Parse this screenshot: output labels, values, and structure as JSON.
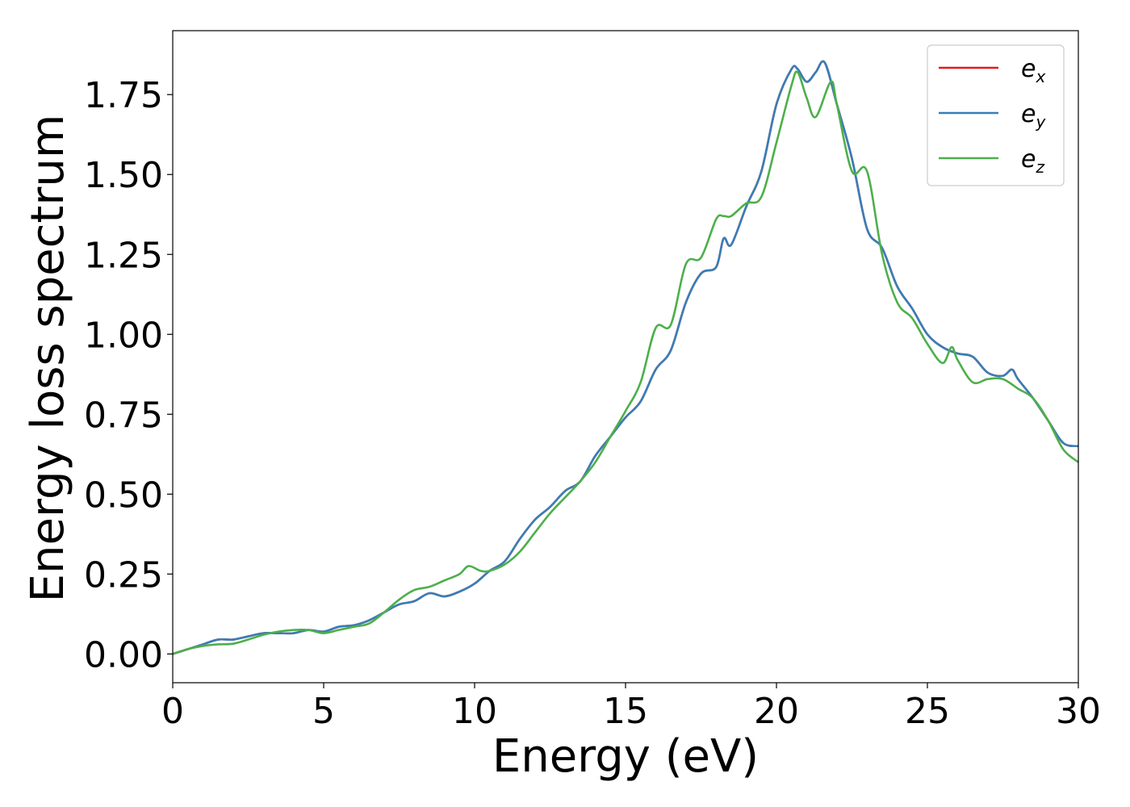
{
  "chart_data": {
    "type": "line",
    "xlabel": "Energy (eV)",
    "ylabel": "Energy loss spectrum",
    "xlim": [
      0,
      30
    ],
    "ylim": [
      -0.09,
      1.95
    ],
    "xticks": [
      0,
      5,
      10,
      15,
      20,
      25,
      30
    ],
    "xtick_labels": [
      "0",
      "5",
      "10",
      "15",
      "20",
      "25",
      "30"
    ],
    "yticks": [
      0.0,
      0.25,
      0.5,
      0.75,
      1.0,
      1.25,
      1.5,
      1.75
    ],
    "ytick_labels": [
      "0.00",
      "0.25",
      "0.50",
      "0.75",
      "1.00",
      "1.25",
      "1.50",
      "1.75"
    ],
    "grid": false,
    "legend_position": "top-right",
    "series": [
      {
        "name": "e_x",
        "label_main": "e",
        "label_sub": "x",
        "color": "#e41a1c",
        "x": [
          0,
          0.5,
          1,
          1.5,
          2,
          2.5,
          3,
          3.5,
          4,
          4.5,
          5,
          5.5,
          6,
          6.5,
          7,
          7.5,
          8,
          8.5,
          9,
          9.5,
          10,
          10.5,
          11,
          11.5,
          12,
          12.5,
          13,
          13.5,
          14,
          14.5,
          15,
          15.5,
          16,
          16.5,
          17,
          17.5,
          18,
          18.25,
          18.5,
          19,
          19.5,
          20,
          20.5,
          20.7,
          21,
          21.3,
          21.6,
          22,
          22.5,
          23,
          23.5,
          24,
          24.5,
          25,
          25.5,
          26,
          26.5,
          27,
          27.5,
          27.8,
          28,
          28.5,
          29,
          29.5,
          30
        ],
        "y": [
          0.0,
          0.015,
          0.03,
          0.045,
          0.045,
          0.055,
          0.065,
          0.065,
          0.065,
          0.075,
          0.07,
          0.085,
          0.09,
          0.105,
          0.13,
          0.155,
          0.165,
          0.19,
          0.18,
          0.195,
          0.22,
          0.26,
          0.29,
          0.36,
          0.42,
          0.46,
          0.51,
          0.54,
          0.62,
          0.68,
          0.74,
          0.79,
          0.89,
          0.95,
          1.1,
          1.19,
          1.21,
          1.3,
          1.28,
          1.4,
          1.51,
          1.72,
          1.83,
          1.83,
          1.79,
          1.82,
          1.85,
          1.72,
          1.55,
          1.33,
          1.27,
          1.15,
          1.08,
          1.0,
          0.96,
          0.94,
          0.93,
          0.88,
          0.87,
          0.89,
          0.86,
          0.8,
          0.73,
          0.66,
          0.65
        ]
      },
      {
        "name": "e_y",
        "label_main": "e",
        "label_sub": "y",
        "color": "#377eb8",
        "x": [
          0,
          0.5,
          1,
          1.5,
          2,
          2.5,
          3,
          3.5,
          4,
          4.5,
          5,
          5.5,
          6,
          6.5,
          7,
          7.5,
          8,
          8.5,
          9,
          9.5,
          10,
          10.5,
          11,
          11.5,
          12,
          12.5,
          13,
          13.5,
          14,
          14.5,
          15,
          15.5,
          16,
          16.5,
          17,
          17.5,
          18,
          18.25,
          18.5,
          19,
          19.5,
          20,
          20.5,
          20.7,
          21,
          21.3,
          21.6,
          22,
          22.5,
          23,
          23.5,
          24,
          24.5,
          25,
          25.5,
          26,
          26.5,
          27,
          27.5,
          27.8,
          28,
          28.5,
          29,
          29.5,
          30
        ],
        "y": [
          0.0,
          0.015,
          0.03,
          0.045,
          0.045,
          0.055,
          0.065,
          0.065,
          0.065,
          0.075,
          0.07,
          0.085,
          0.09,
          0.105,
          0.13,
          0.155,
          0.165,
          0.19,
          0.18,
          0.195,
          0.22,
          0.26,
          0.29,
          0.36,
          0.42,
          0.46,
          0.51,
          0.54,
          0.62,
          0.68,
          0.74,
          0.79,
          0.89,
          0.95,
          1.1,
          1.19,
          1.21,
          1.3,
          1.28,
          1.4,
          1.51,
          1.72,
          1.83,
          1.83,
          1.79,
          1.82,
          1.85,
          1.72,
          1.55,
          1.33,
          1.27,
          1.15,
          1.08,
          1.0,
          0.96,
          0.94,
          0.93,
          0.88,
          0.87,
          0.89,
          0.86,
          0.8,
          0.73,
          0.66,
          0.65
        ]
      },
      {
        "name": "e_z",
        "label_main": "e",
        "label_sub": "z",
        "color": "#4daf4a",
        "x": [
          0,
          0.5,
          1,
          1.5,
          2,
          2.5,
          3,
          3.5,
          4,
          4.5,
          5,
          5.5,
          6,
          6.5,
          7,
          7.5,
          8,
          8.5,
          9,
          9.5,
          9.8,
          10.2,
          10.5,
          11,
          11.5,
          12,
          12.5,
          13,
          13.5,
          14,
          14.5,
          15,
          15.5,
          16,
          16.5,
          17,
          17.5,
          18,
          18.25,
          18.5,
          19,
          19.5,
          20,
          20.5,
          20.7,
          21,
          21.3,
          21.8,
          22,
          22.5,
          23,
          23.5,
          24,
          24.5,
          25,
          25.5,
          25.8,
          26,
          26.5,
          27,
          27.5,
          28,
          28.5,
          29,
          29.5,
          30
        ],
        "y": [
          0.0,
          0.015,
          0.025,
          0.03,
          0.032,
          0.045,
          0.06,
          0.07,
          0.075,
          0.075,
          0.065,
          0.075,
          0.085,
          0.095,
          0.13,
          0.17,
          0.2,
          0.21,
          0.23,
          0.25,
          0.275,
          0.26,
          0.26,
          0.28,
          0.32,
          0.38,
          0.44,
          0.49,
          0.54,
          0.6,
          0.68,
          0.76,
          0.85,
          1.02,
          1.03,
          1.22,
          1.24,
          1.36,
          1.37,
          1.37,
          1.41,
          1.43,
          1.6,
          1.78,
          1.82,
          1.74,
          1.68,
          1.79,
          1.72,
          1.51,
          1.51,
          1.25,
          1.1,
          1.05,
          0.97,
          0.91,
          0.96,
          0.92,
          0.85,
          0.86,
          0.86,
          0.83,
          0.8,
          0.73,
          0.64,
          0.6
        ]
      }
    ]
  }
}
